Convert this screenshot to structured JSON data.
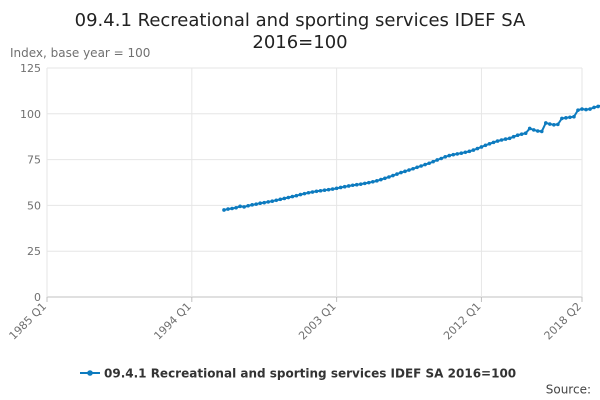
{
  "chart_data": {
    "type": "line",
    "title": "09.4.1 Recreational and sporting services IDEF SA 2016=100",
    "title_lines": [
      "09.4.1 Recreational and sporting services IDEF SA",
      "2016=100"
    ],
    "ylabel": "Index, base year = 100",
    "xlabel": "",
    "ylim": [
      0,
      125
    ],
    "yticks": [
      0,
      25,
      50,
      75,
      100,
      125
    ],
    "xrange": [
      1985,
      2018.25
    ],
    "xticks": [
      {
        "label": "1985 Q1",
        "x": 1985
      },
      {
        "label": "1994 Q1",
        "x": 1994
      },
      {
        "label": "2003 Q1",
        "x": 2003
      },
      {
        "label": "2012 Q1",
        "x": 2012
      },
      {
        "label": "2018 Q2",
        "x": 2018.25
      }
    ],
    "grid": true,
    "legend_position": "bottom",
    "color": "#0d7bbf",
    "series": [
      {
        "name": "09.4.1 Recreational and sporting services IDEF SA 2016=100",
        "start": 1996,
        "step": 0.25,
        "values": [
          47.5,
          48.0,
          48.3,
          48.7,
          49.5,
          49.2,
          49.8,
          50.3,
          50.7,
          51.2,
          51.5,
          51.9,
          52.3,
          52.8,
          53.3,
          53.8,
          54.3,
          54.8,
          55.3,
          55.9,
          56.4,
          56.9,
          57.3,
          57.7,
          58.0,
          58.3,
          58.6,
          58.9,
          59.3,
          59.8,
          60.2,
          60.6,
          61.0,
          61.3,
          61.6,
          62.0,
          62.4,
          62.9,
          63.4,
          64.1,
          64.8,
          65.5,
          66.3,
          67.1,
          67.9,
          68.6,
          69.3,
          70.0,
          70.8,
          71.5,
          72.3,
          73.0,
          73.9,
          74.8,
          75.6,
          76.5,
          77.2,
          77.7,
          78.1,
          78.5,
          79.0,
          79.5,
          80.2,
          81.0,
          81.9,
          82.8,
          83.6,
          84.4,
          85.1,
          85.7,
          86.2,
          86.6,
          87.5,
          88.3,
          88.9,
          89.4,
          92.0,
          91.2,
          90.6,
          90.4,
          95.0,
          94.4,
          94.0,
          94.2,
          97.5,
          97.8,
          98.1,
          98.4,
          102.0,
          102.6,
          102.3,
          102.6,
          103.5,
          104.0,
          104.8,
          105.6
        ]
      }
    ]
  },
  "footer": {
    "source_label": "Source:"
  }
}
